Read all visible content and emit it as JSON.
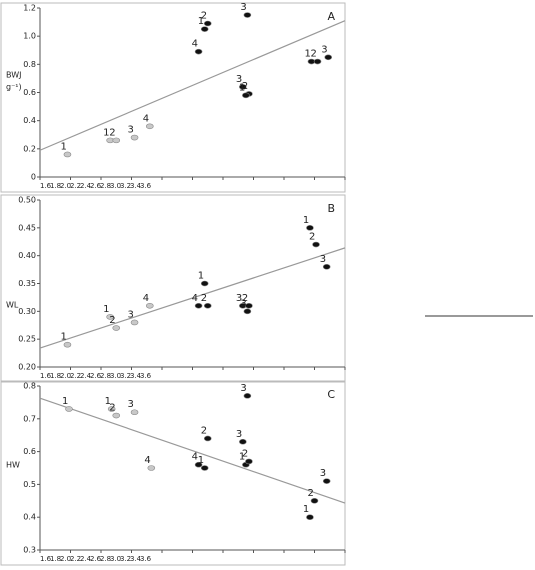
{
  "chart_data": [
    {
      "type": "scatter",
      "title": "A",
      "y_label": [
        "BWJ",
        "g⁻¹)"
      ],
      "xlim": [
        1.6,
        3.6
      ],
      "ylim": [
        0,
        1.2
      ],
      "xticks": [
        1.6,
        1.8,
        {
          "value": 2,
          "label": "2.0"
        },
        2.2,
        2.4,
        2.6,
        2.8,
        {
          "value": 3,
          "label": "3.0"
        },
        3.2,
        3.4,
        3.6
      ],
      "yticks": [
        0,
        0.2,
        0.4,
        0.6,
        0.8,
        {
          "value": 1,
          "label": "1.0"
        },
        1.2
      ],
      "series": [
        {
          "color": "#c8c8c8",
          "x": [
            1.78,
            2.06,
            2.1,
            2.22,
            2.32
          ],
          "values": [
            0.16,
            0.26,
            0.26,
            0.28,
            0.36
          ],
          "labels": [
            "1",
            "1",
            "2",
            "3",
            "4"
          ]
        },
        {
          "color": "#111111",
          "x": [
            2.64,
            2.68,
            2.7,
            2.96,
            2.93,
            2.97,
            2.95,
            3.38,
            3.42,
            3.49
          ],
          "values": [
            0.89,
            1.05,
            1.09,
            1.15,
            0.64,
            0.59,
            0.58,
            0.82,
            0.82,
            0.85
          ],
          "labels": [
            "4",
            "1",
            "2",
            "3",
            "3",
            "2",
            "1",
            "1",
            "2",
            "3"
          ]
        }
      ],
      "trendline": {
        "x": [
          1.6,
          3.6
        ],
        "values": [
          0.19,
          1.11
        ]
      }
    },
    {
      "type": "scatter",
      "title": "B",
      "y_label": [
        "WL"
      ],
      "xlim": [
        1.6,
        3.6
      ],
      "ylim": [
        0.2,
        0.5
      ],
      "xticks": [
        1.6,
        1.8,
        {
          "value": 2,
          "label": "2.0"
        },
        2.2,
        2.4,
        2.6,
        2.8,
        {
          "value": 3,
          "label": "3.0"
        },
        3.2,
        3.4,
        3.6
      ],
      "yticks": [
        {
          "value": 0.2,
          "label": "0.20"
        },
        {
          "value": 0.25,
          "label": "0.25"
        },
        {
          "value": 0.3,
          "label": "0.30"
        },
        {
          "value": 0.35,
          "label": "0.35"
        },
        {
          "value": 0.4,
          "label": "0.40"
        },
        {
          "value": 0.45,
          "label": "0.45"
        },
        {
          "value": 0.5,
          "label": "0.50"
        }
      ],
      "series": [
        {
          "color": "#c8c8c8",
          "x": [
            1.78,
            2.06,
            2.1,
            2.22,
            2.32
          ],
          "values": [
            0.24,
            0.29,
            0.27,
            0.28,
            0.31
          ],
          "labels": [
            "1",
            "1",
            "2",
            "3",
            "4"
          ]
        },
        {
          "color": "#111111",
          "x": [
            2.64,
            2.68,
            2.7,
            2.93,
            2.97,
            2.96,
            3.37,
            3.41,
            3.48
          ],
          "values": [
            0.31,
            0.35,
            0.31,
            0.31,
            0.31,
            0.3,
            0.45,
            0.42,
            0.38
          ],
          "labels": [
            "4",
            "1",
            "2",
            "3",
            "2",
            "3",
            "1",
            "2",
            "3"
          ]
        }
      ],
      "trendline": {
        "x": [
          1.6,
          3.6
        ],
        "values": [
          0.234,
          0.414
        ]
      }
    },
    {
      "type": "scatter",
      "title": "C",
      "y_label": [
        "HW"
      ],
      "xlim": [
        1.6,
        3.6
      ],
      "ylim": [
        0.3,
        0.8
      ],
      "xticks": [
        1.6,
        1.8,
        {
          "value": 2,
          "label": "2.0"
        },
        2.2,
        2.4,
        2.6,
        2.8,
        {
          "value": 3,
          "label": "3.0"
        },
        3.2,
        3.4,
        3.6
      ],
      "yticks": [
        0.3,
        0.4,
        0.5,
        0.6,
        0.7,
        0.8
      ],
      "series": [
        {
          "color": "#c8c8c8",
          "x": [
            1.79,
            2.07,
            2.1,
            2.22,
            2.33
          ],
          "values": [
            0.73,
            0.73,
            0.71,
            0.72,
            0.55
          ],
          "labels": [
            "1",
            "1",
            "2",
            "3",
            "4"
          ]
        },
        {
          "color": "#111111",
          "x": [
            2.64,
            2.68,
            2.7,
            2.93,
            2.96,
            2.95,
            2.97,
            3.48,
            3.4,
            3.37
          ],
          "values": [
            0.56,
            0.55,
            0.64,
            0.63,
            0.77,
            0.56,
            0.57,
            0.51,
            0.45,
            0.4
          ],
          "labels": [
            "4",
            "1",
            "2",
            "3",
            "3",
            "1",
            "2",
            "3",
            "2",
            "1"
          ]
        }
      ],
      "trendline": {
        "x": [
          1.6,
          3.6
        ],
        "values": [
          0.763,
          0.443
        ]
      }
    }
  ]
}
